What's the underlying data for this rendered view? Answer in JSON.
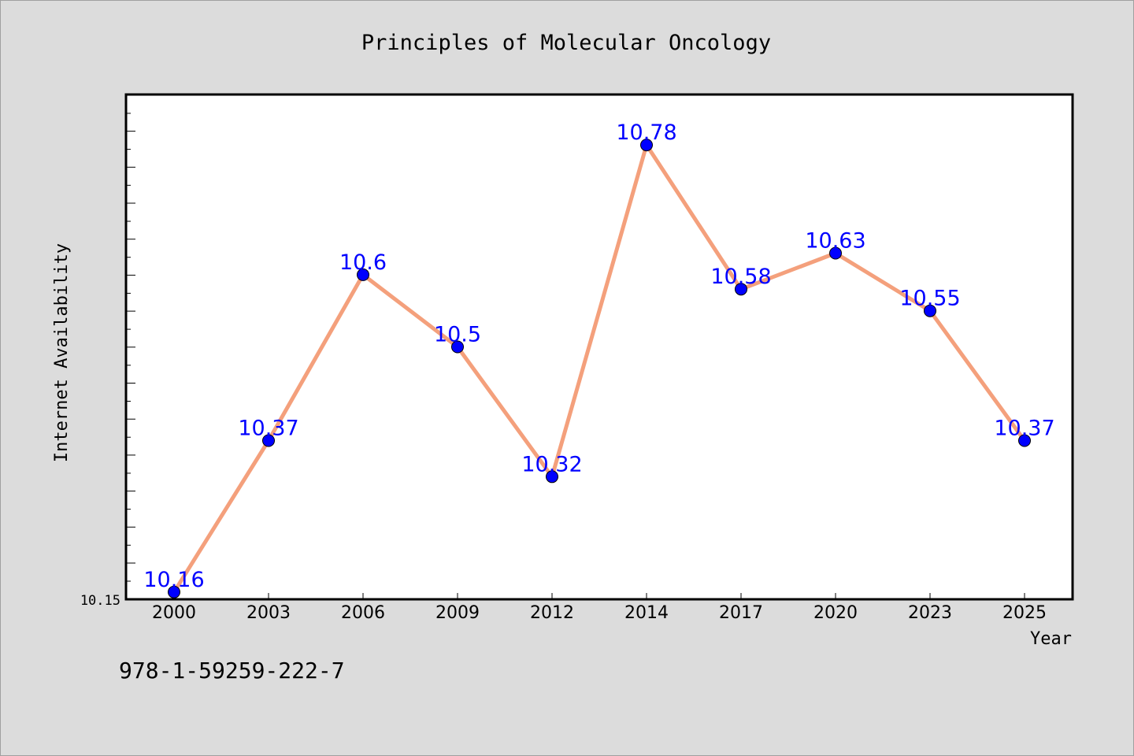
{
  "chart_data": {
    "type": "line",
    "title": "Principles of Molecular Oncology",
    "xlabel": "Year",
    "ylabel": "Internet Availability",
    "categories": [
      "2000",
      "2003",
      "2006",
      "2009",
      "2012",
      "2014",
      "2017",
      "2020",
      "2023",
      "2025"
    ],
    "series": [
      {
        "values": [
          10.16,
          10.37,
          10.6,
          10.5,
          10.32,
          10.78,
          10.58,
          10.63,
          10.55,
          10.37
        ],
        "labels": [
          "10.16",
          "10.37",
          "10.6",
          "10.5",
          "10.32",
          "10.78",
          "10.58",
          "10.63",
          "10.55",
          "10.37"
        ]
      }
    ],
    "ylim": [
      10.15,
      10.85
    ],
    "ytick_label": "10.15",
    "line_color": "#f4a07c",
    "marker_color": "#0000ff",
    "label_color": "#0000ff",
    "grid": false
  },
  "footer": {
    "isbn": "978-1-59259-222-7"
  }
}
